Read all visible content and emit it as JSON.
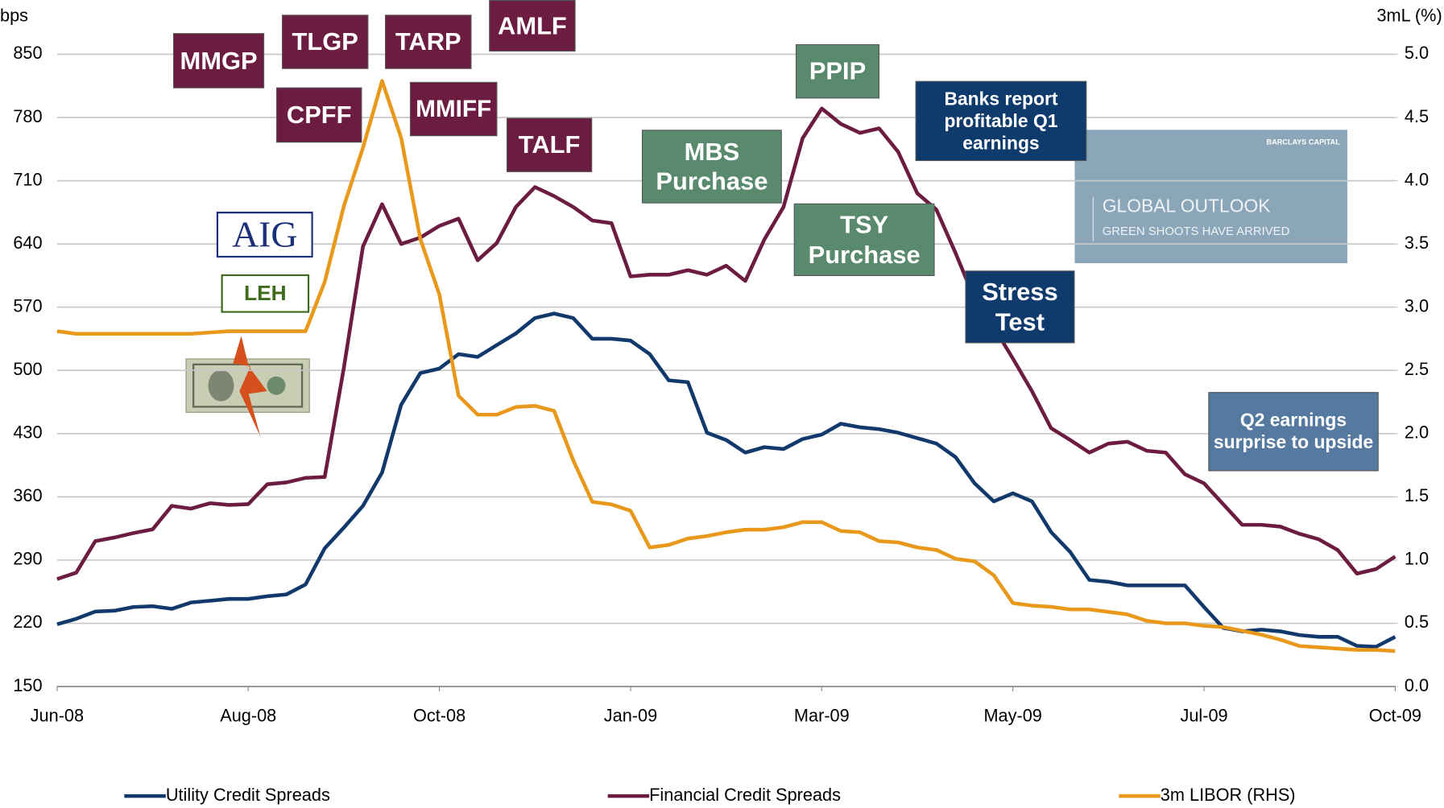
{
  "chart_data": {
    "type": "line",
    "y_label": "bps",
    "y2_label": "3mL (%)",
    "categories": [
      "Jun-08",
      null,
      null,
      null,
      null,
      null,
      null,
      null,
      null,
      null,
      "Aug-08",
      null,
      null,
      null,
      null,
      null,
      null,
      null,
      null,
      null,
      "Oct-08",
      null,
      null,
      null,
      null,
      null,
      null,
      null,
      null,
      null,
      "Jan-09",
      null,
      null,
      null,
      null,
      null,
      null,
      null,
      null,
      null,
      "Mar-09",
      null,
      null,
      null,
      null,
      null,
      null,
      null,
      null,
      null,
      "May-09",
      null,
      null,
      null,
      null,
      null,
      null,
      null,
      null,
      null,
      "Jul-09",
      null,
      null,
      null,
      null,
      null,
      null,
      null,
      null,
      null,
      "Oct-09"
    ],
    "ylim": [
      150,
      850
    ],
    "yticks": [
      150,
      220,
      290,
      360,
      430,
      500,
      570,
      640,
      710,
      780,
      850
    ],
    "y2lim": [
      0,
      5
    ],
    "y2ticks": [
      {
        "value": 0,
        "label": "0.0"
      },
      0.5,
      {
        "value": 1,
        "label": "1.0"
      },
      1.5,
      {
        "value": 2,
        "label": "2.0"
      },
      2.5,
      {
        "value": 3,
        "label": "3.0"
      },
      3.5,
      {
        "value": 4,
        "label": "4.0"
      },
      4.5,
      {
        "value": 5,
        "label": "5.0"
      }
    ],
    "grid": true,
    "legend": "bottom",
    "series": [
      {
        "name": "Utility Credit Spreads",
        "color": "#12396b",
        "values": [
          219,
          225,
          233,
          234,
          238,
          239,
          236,
          243,
          245,
          247,
          247,
          250,
          252,
          263,
          303,
          326,
          350,
          387,
          462,
          497,
          502,
          518,
          515,
          528,
          541,
          558,
          563,
          558,
          535,
          535,
          533,
          518,
          489,
          487,
          431,
          423,
          409,
          415,
          413,
          424,
          429,
          441,
          437,
          435,
          431,
          425,
          419,
          404,
          375,
          355,
          364,
          355,
          321,
          299,
          268,
          266,
          262,
          262,
          262,
          262,
          238,
          215,
          211,
          213,
          211,
          207,
          205,
          205,
          195,
          194,
          205
        ]
      },
      {
        "name": "Financial Credit Spreads",
        "color": "#6b1c40",
        "values": [
          269,
          276,
          311,
          315,
          320,
          324,
          350,
          347,
          353,
          351,
          352,
          374,
          376,
          381,
          382,
          503,
          637,
          684,
          640,
          647,
          660,
          668,
          622,
          641,
          681,
          703,
          693,
          681,
          666,
          663,
          604,
          606,
          606,
          611,
          606,
          616,
          599,
          645,
          681,
          757,
          790,
          773,
          763,
          768,
          742,
          696,
          678,
          630,
          579,
          548,
          513,
          477,
          436,
          423,
          409,
          419,
          421,
          411,
          409,
          385,
          375,
          352,
          329,
          329,
          327,
          319,
          313,
          301,
          275,
          280,
          294
        ]
      },
      {
        "name": "3m LIBOR (RHS)",
        "color": "#e8991c",
        "axis": "y2",
        "values": [
          2.81,
          2.79,
          2.79,
          2.79,
          2.79,
          2.79,
          2.79,
          2.79,
          2.8,
          2.81,
          2.81,
          2.81,
          2.81,
          2.81,
          3.2,
          3.8,
          4.26,
          4.79,
          4.34,
          3.54,
          3.1,
          2.3,
          2.15,
          2.15,
          2.21,
          2.22,
          2.18,
          1.79,
          1.46,
          1.44,
          1.39,
          1.1,
          1.12,
          1.17,
          1.19,
          1.22,
          1.24,
          1.24,
          1.26,
          1.3,
          1.3,
          1.23,
          1.22,
          1.15,
          1.14,
          1.1,
          1.08,
          1.01,
          0.99,
          0.88,
          0.66,
          0.64,
          0.63,
          0.61,
          0.61,
          0.59,
          0.57,
          0.52,
          0.5,
          0.5,
          0.48,
          0.47,
          0.44,
          0.41,
          0.37,
          0.32,
          0.31,
          0.3,
          0.29,
          0.29,
          0.28
        ]
      }
    ],
    "annotations": [
      {
        "text": "MMGP",
        "color": "#6b1c40"
      },
      {
        "text": "TLGP",
        "color": "#6b1c40"
      },
      {
        "text": "TARP",
        "color": "#6b1c40"
      },
      {
        "text": "AMLF",
        "color": "#6b1c40"
      },
      {
        "text": "CPFF",
        "color": "#6b1c40"
      },
      {
        "text": "MMIFF",
        "color": "#6b1c40"
      },
      {
        "text": "TALF",
        "color": "#6b1c40"
      },
      {
        "text": "PPIP",
        "color": "#5a8a6e"
      },
      {
        "text": "MBS Purchase",
        "color": "#5a8a6e"
      },
      {
        "text": "TSY Purchase",
        "color": "#5a8a6e"
      },
      {
        "text": "Banks report profitable Q1 earnings",
        "color": "#0f3a6c"
      },
      {
        "text": "Stress Test",
        "color": "#0f3a6c"
      },
      {
        "text": "Q2 earnings surprise to upside",
        "color": "#56799f"
      },
      {
        "text": "AIG",
        "color": "#1b2f7a"
      },
      {
        "text": "LEH",
        "color": "#3f6b1c"
      }
    ],
    "report": {
      "brand": "BARCLAYS CAPITAL",
      "title": "GLOBAL OUTLOOK",
      "subtitle": "GREEN SHOOTS HAVE ARRIVED"
    }
  }
}
